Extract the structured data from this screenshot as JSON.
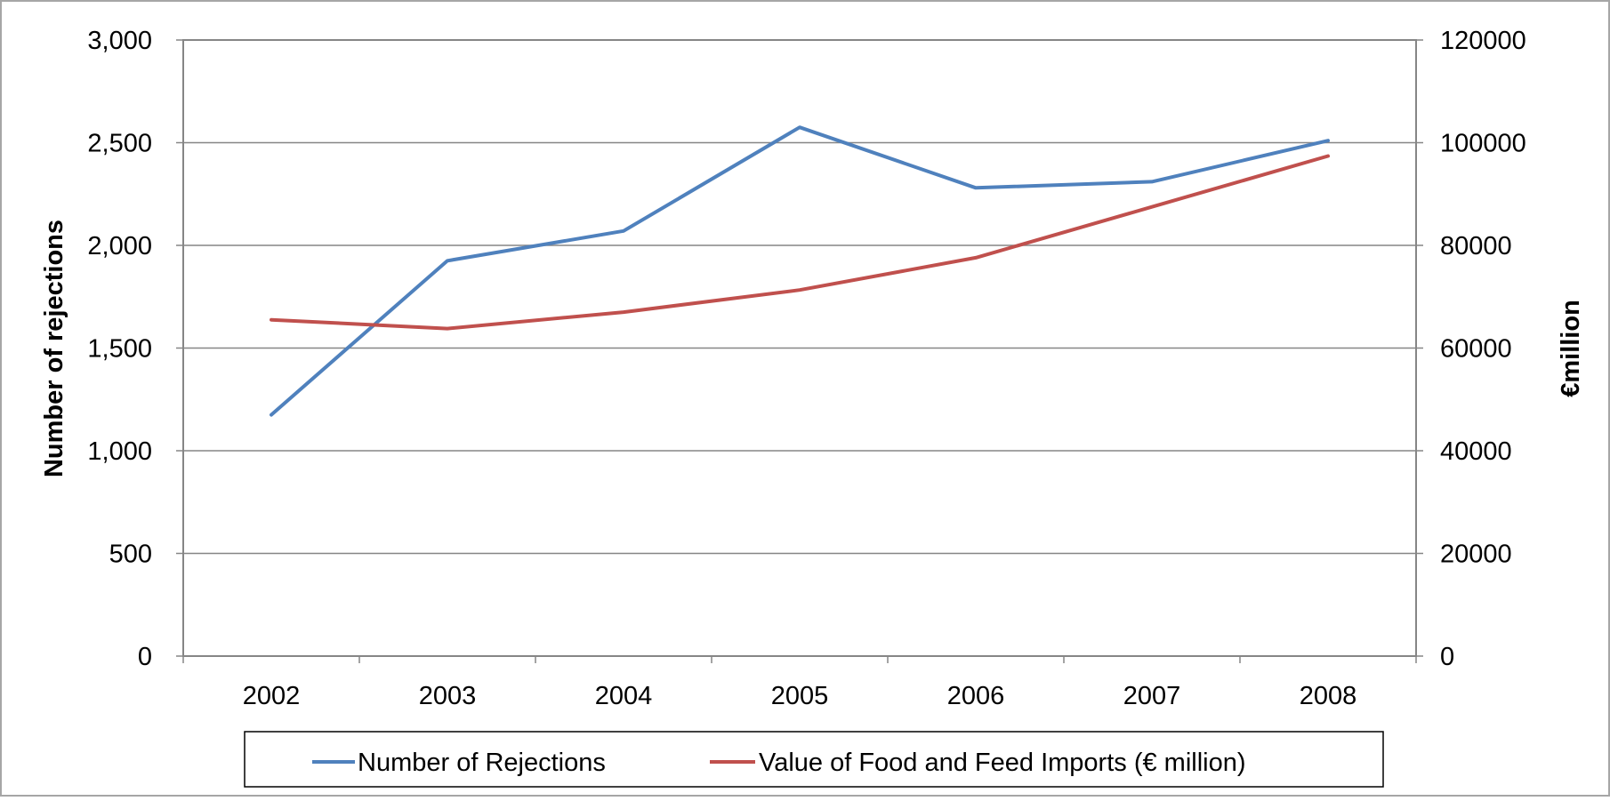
{
  "chart_data": {
    "type": "line",
    "categories": [
      "2002",
      "2003",
      "2004",
      "2005",
      "2006",
      "2007",
      "2008"
    ],
    "ylabel": "Number of rejections",
    "y2label": "€million",
    "ylim": [
      0,
      3000
    ],
    "y2lim": [
      0,
      120000
    ],
    "yticks": [
      "0",
      "500",
      "1,000",
      "1,500",
      "2,000",
      "2,500",
      "3,000"
    ],
    "y2ticks": [
      "0",
      "20000",
      "40000",
      "60000",
      "80000",
      "100000",
      "120000"
    ],
    "grid": true,
    "legend": "bottom",
    "series": [
      {
        "name": "Number of Rejections",
        "axis": "left",
        "color": "#4f81bd",
        "values": [
          1175,
          1925,
          2070,
          2575,
          2280,
          2310,
          2510
        ]
      },
      {
        "name": "Value of Food and Feed Imports (€ million)",
        "axis": "right",
        "color": "#c0504d",
        "values": [
          65500,
          63800,
          67000,
          71300,
          77600,
          87500,
          97400
        ]
      }
    ]
  }
}
